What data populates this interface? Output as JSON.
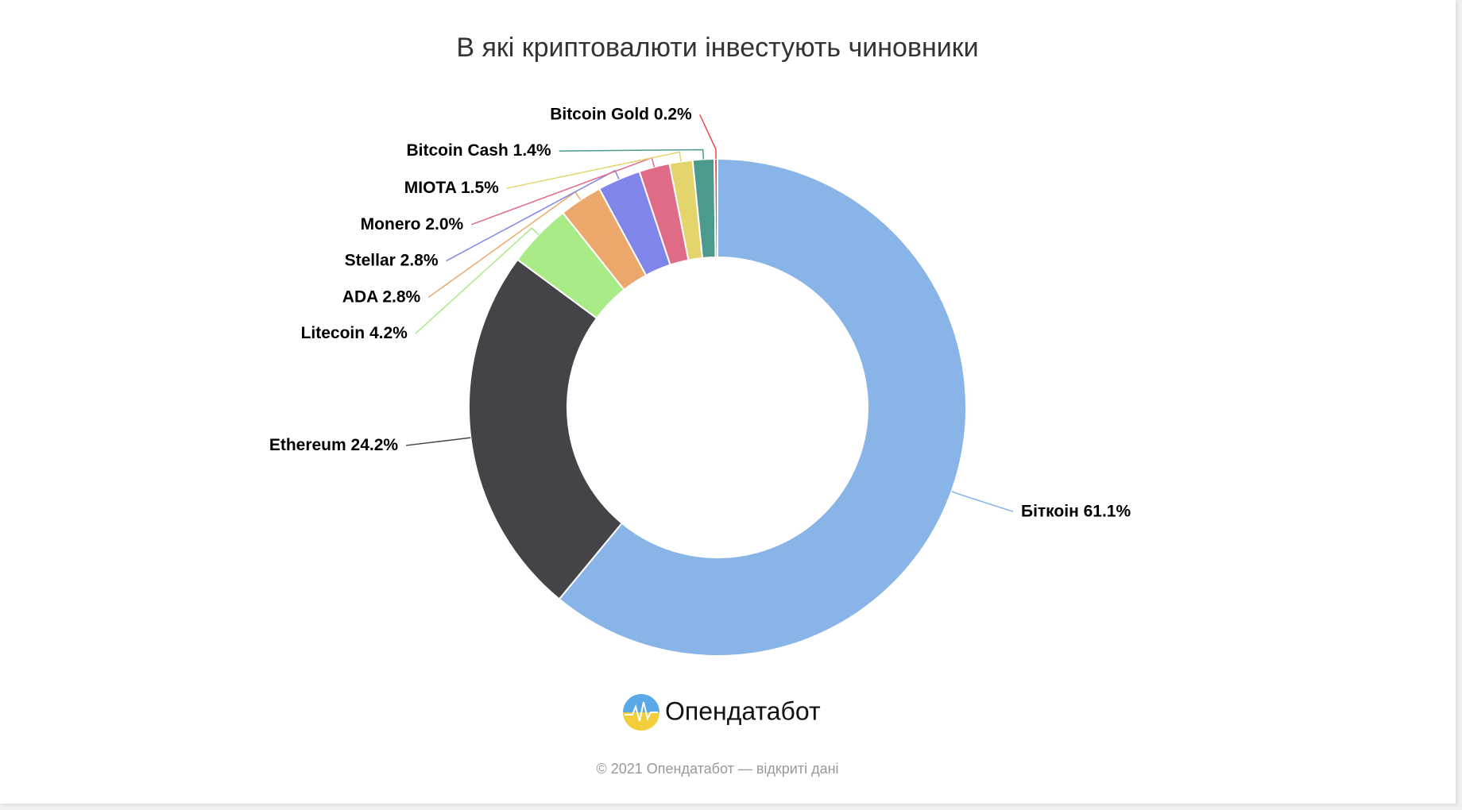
{
  "chart_data": {
    "type": "donut",
    "title": "В які криптовалюти інвестують чиновники",
    "categories": [
      "Біткоін",
      "Ethereum",
      "Litecoin",
      "ADA",
      "Stellar",
      "Monero",
      "MIOTA",
      "Bitcoin Cash",
      "Bitcoin Gold"
    ],
    "values": [
      61.1,
      24.2,
      4.2,
      2.8,
      2.8,
      2.0,
      1.5,
      1.4,
      0.2
    ],
    "value_labels": [
      "61.1%",
      "24.2%",
      "4.2%",
      "2.8%",
      "2.8%",
      "2.0%",
      "1.5%",
      "1.4%",
      "0.2%"
    ],
    "colors": [
      "#88b4e7",
      "#434348",
      "#a9eb86",
      "#eca86b",
      "#8085e9",
      "#e06b87",
      "#e4d46c",
      "#4a9a8e",
      "#e34d4d"
    ]
  },
  "logo": "Опендатабот",
  "footer": "© 2021 Опендатабот — відкриті дані"
}
